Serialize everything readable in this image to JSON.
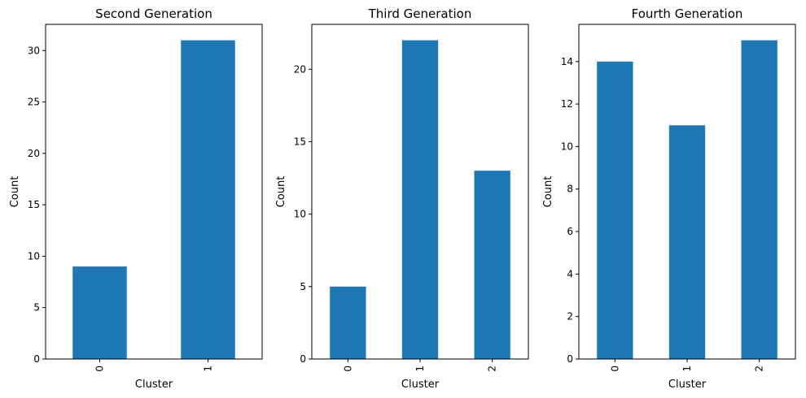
{
  "chart_data": [
    {
      "type": "bar",
      "title": "Second Generation",
      "xlabel": "Cluster",
      "ylabel": "Count",
      "categories": [
        "0",
        "1"
      ],
      "values": [
        9,
        31
      ],
      "ylim": [
        0,
        32.55
      ],
      "yticks": [
        0,
        5,
        10,
        15,
        20,
        25,
        30
      ],
      "bar_color": "#1f77b4",
      "grid": false
    },
    {
      "type": "bar",
      "title": "Third Generation",
      "xlabel": "Cluster",
      "ylabel": "Count",
      "categories": [
        "0",
        "1",
        "2"
      ],
      "values": [
        5,
        22,
        13
      ],
      "ylim": [
        0,
        23.1
      ],
      "yticks": [
        0,
        5,
        10,
        15,
        20
      ],
      "bar_color": "#1f77b4",
      "grid": false
    },
    {
      "type": "bar",
      "title": "Fourth Generation",
      "xlabel": "Cluster",
      "ylabel": "Count",
      "categories": [
        "0",
        "1",
        "2"
      ],
      "values": [
        14,
        11,
        15
      ],
      "ylim": [
        0,
        15.75
      ],
      "yticks": [
        0,
        2,
        4,
        6,
        8,
        10,
        12,
        14
      ],
      "bar_color": "#1f77b4",
      "grid": false
    }
  ]
}
